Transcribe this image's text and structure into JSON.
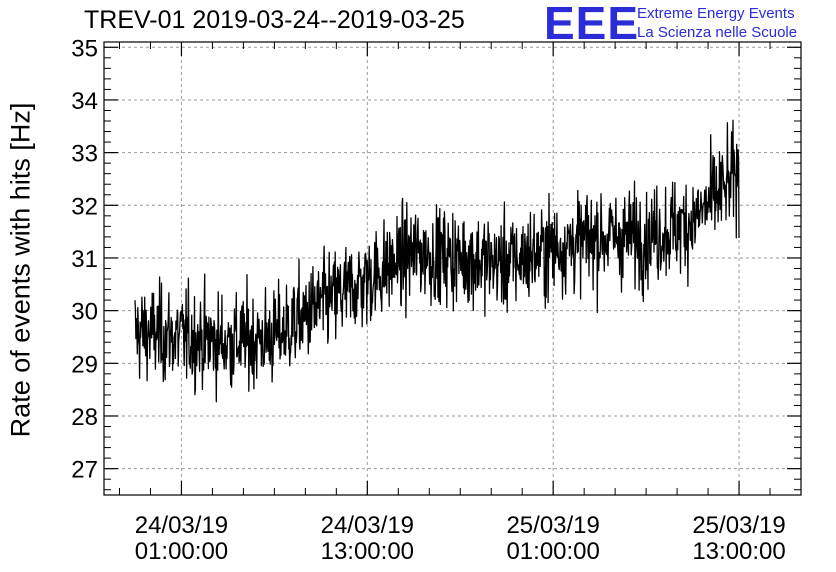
{
  "header": {
    "title": "TREV-01 2019-03-24--2019-03-25",
    "logo_letters": "EEE",
    "logo_line1": "Extreme Energy Events",
    "logo_line2": "La Scienza nelle Scuole"
  },
  "colors": {
    "logo": "#2b2bd8",
    "trace": "#000000",
    "grid": "#9a9a9a"
  },
  "chart_data": {
    "type": "line",
    "title": "TREV-01 2019-03-24--2019-03-25",
    "xlabel": "",
    "ylabel": "Rate of events with hits [Hz]",
    "xlim": [
      "2019-03-23 20:00:00",
      "2019-03-25 17:00:00"
    ],
    "ylim": [
      26.5,
      35.1
    ],
    "grid": true,
    "yticks": [
      27,
      28,
      29,
      30,
      31,
      32,
      33,
      34,
      35
    ],
    "xticks": [
      {
        "t": "2019-03-24 01:00:00",
        "line1": "24/03/19",
        "line2": "01:00:00"
      },
      {
        "t": "2019-03-24 13:00:00",
        "line1": "24/03/19",
        "line2": "13:00:00"
      },
      {
        "t": "2019-03-25 01:00:00",
        "line1": "25/03/19",
        "line2": "01:00:00"
      },
      {
        "t": "2019-03-25 13:00:00",
        "line1": "25/03/19",
        "line2": "13:00:00"
      }
    ],
    "series": [
      {
        "x_start": "2019-03-23 22:00:00",
        "x_end": "2019-03-25 13:00:00",
        "trend": [
          {
            "t": "2019-03-23 22:00:00",
            "y": 29.6
          },
          {
            "t": "2019-03-24 01:00:00",
            "y": 29.5
          },
          {
            "t": "2019-03-24 04:00:00",
            "y": 29.4
          },
          {
            "t": "2019-03-24 07:00:00",
            "y": 29.5
          },
          {
            "t": "2019-03-24 10:00:00",
            "y": 30.1
          },
          {
            "t": "2019-03-24 13:00:00",
            "y": 30.6
          },
          {
            "t": "2019-03-24 16:00:00",
            "y": 31.1
          },
          {
            "t": "2019-03-24 19:00:00",
            "y": 31.0
          },
          {
            "t": "2019-03-24 22:00:00",
            "y": 30.9
          },
          {
            "t": "2019-03-25 01:00:00",
            "y": 31.2
          },
          {
            "t": "2019-03-25 04:00:00",
            "y": 31.4
          },
          {
            "t": "2019-03-25 07:00:00",
            "y": 31.4
          },
          {
            "t": "2019-03-25 10:00:00",
            "y": 31.7
          },
          {
            "t": "2019-03-25 13:00:00",
            "y": 32.6
          }
        ],
        "noise_amplitude": 0.6
      }
    ]
  }
}
